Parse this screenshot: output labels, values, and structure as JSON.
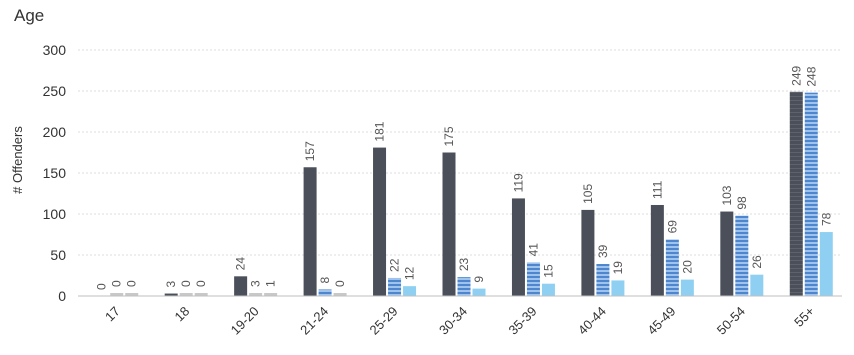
{
  "chart_data": {
    "type": "bar",
    "title": "Age",
    "ylabel": "# Offenders",
    "xlabel": "",
    "ylim": [
      0,
      300
    ],
    "yticks": [
      0,
      50,
      100,
      150,
      200,
      250,
      300
    ],
    "grid": true,
    "categories": [
      "17",
      "18",
      "19-20",
      "21-24",
      "25-29",
      "30-34",
      "35-39",
      "40-44",
      "45-49",
      "50-54",
      "55+"
    ],
    "series": [
      {
        "values": [
          0,
          3,
          24,
          157,
          181,
          175,
          119,
          105,
          111,
          103,
          249
        ],
        "color": "#4a4f59"
      },
      {
        "values": [
          0,
          0,
          3,
          8,
          22,
          23,
          41,
          39,
          69,
          98,
          248
        ],
        "color": "#5b8fcf"
      },
      {
        "values": [
          0,
          0,
          1,
          0,
          12,
          9,
          15,
          19,
          20,
          26,
          78
        ],
        "color": "#8fd0f2"
      }
    ],
    "category_colors": [
      "#333333",
      "#333333",
      "#333333",
      "#333333",
      "#2b4f8a",
      "#333333",
      "#333333",
      "#333333",
      "#333333",
      "#333333",
      "#333333"
    ]
  }
}
